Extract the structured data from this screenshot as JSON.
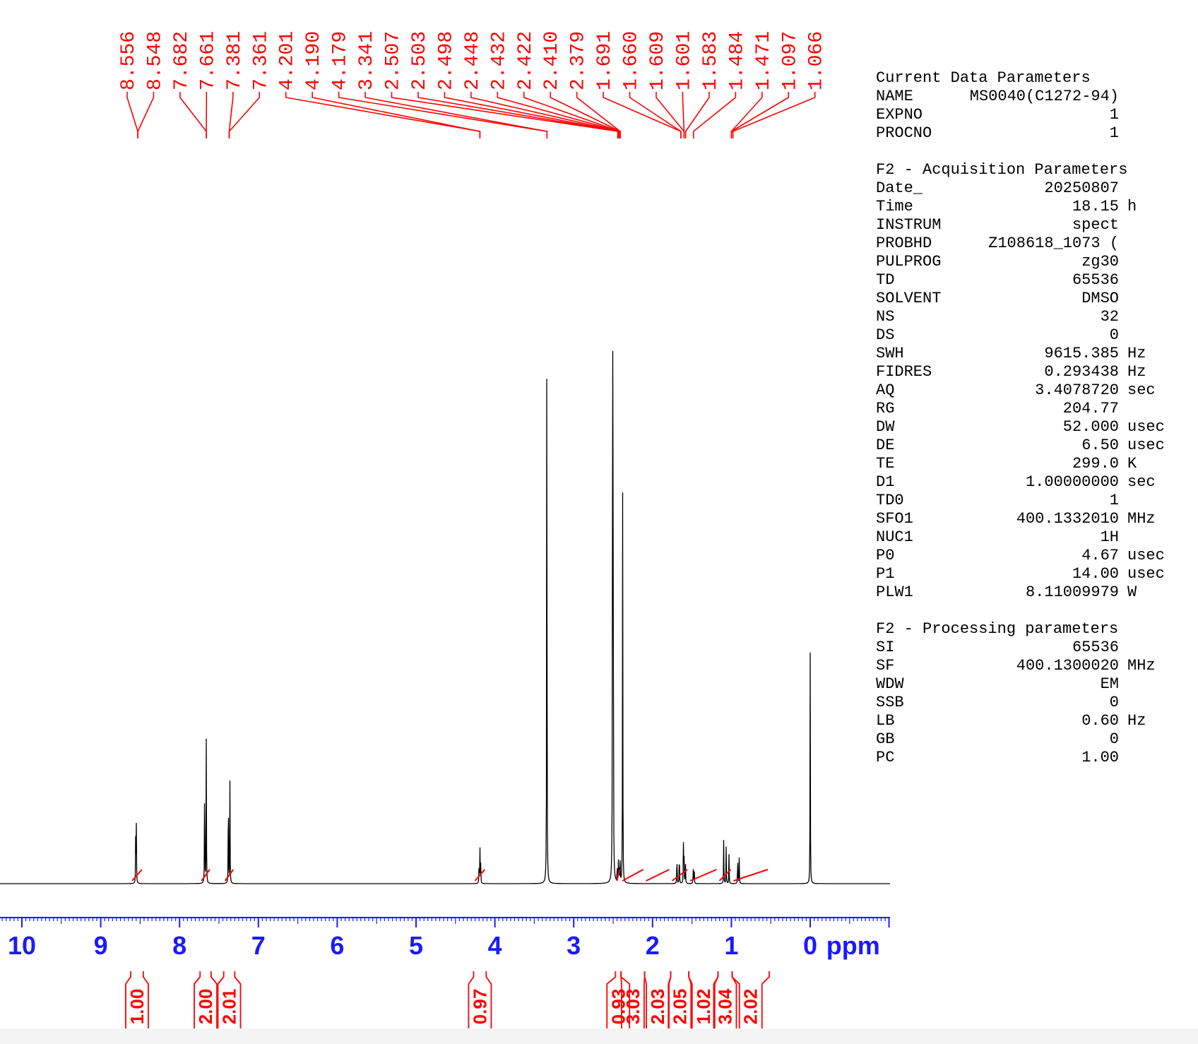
{
  "chart_data": {
    "type": "line",
    "xlabel": "ppm",
    "xlim": [
      10.2,
      -1.1
    ],
    "x_ticks": [
      "10",
      "9",
      "8",
      "7",
      "6",
      "5",
      "4",
      "3",
      "2",
      "1",
      "0"
    ],
    "grid": false,
    "colors": {
      "spectrum": "#000000",
      "annotation": "#ff0000",
      "axis": "#1a1aff"
    },
    "series": [
      {
        "peaks": [
          {
            "ppm": 8.556,
            "height": 0.09
          },
          {
            "ppm": 8.548,
            "height": 0.085
          },
          {
            "ppm": 7.682,
            "height": 0.185
          },
          {
            "ppm": 7.661,
            "height": 0.215
          },
          {
            "ppm": 7.381,
            "height": 0.17
          },
          {
            "ppm": 7.361,
            "height": 0.15
          },
          {
            "ppm": 4.201,
            "height": 0.03
          },
          {
            "ppm": 4.19,
            "height": 0.06
          },
          {
            "ppm": 4.179,
            "height": 0.035
          },
          {
            "ppm": 3.341,
            "height": 1.0
          },
          {
            "ppm": 2.507,
            "height": 0.75
          },
          {
            "ppm": 2.503,
            "height": 0.6
          },
          {
            "ppm": 2.498,
            "height": 0.45
          },
          {
            "ppm": 2.448,
            "height": 0.03
          },
          {
            "ppm": 2.432,
            "height": 0.035
          },
          {
            "ppm": 2.422,
            "height": 0.03
          },
          {
            "ppm": 2.41,
            "height": 0.03
          },
          {
            "ppm": 2.379,
            "height": 0.575
          },
          {
            "ppm": 1.691,
            "height": 0.05
          },
          {
            "ppm": 1.66,
            "height": 0.055
          },
          {
            "ppm": 1.609,
            "height": 0.06
          },
          {
            "ppm": 1.601,
            "height": 0.055
          },
          {
            "ppm": 1.583,
            "height": 0.04
          },
          {
            "ppm": 1.484,
            "height": 0.025
          },
          {
            "ppm": 1.471,
            "height": 0.025
          },
          {
            "ppm": 1.097,
            "height": 0.07
          },
          {
            "ppm": 1.066,
            "height": 0.055
          },
          {
            "ppm": 1.03,
            "height": 0.045
          },
          {
            "ppm": 0.92,
            "height": 0.045
          },
          {
            "ppm": 0.9,
            "height": 0.04
          },
          {
            "ppm": 0.0,
            "height": 0.34
          }
        ]
      }
    ],
    "peak_labels": [
      "8.556",
      "8.548",
      "7.682",
      "7.661",
      "7.381",
      "7.361",
      "4.201",
      "4.190",
      "4.179",
      "3.341",
      "2.507",
      "2.503",
      "2.498",
      "2.448",
      "2.432",
      "2.422",
      "2.410",
      "2.379",
      "1.691",
      "1.660",
      "1.609",
      "1.601",
      "1.583",
      "1.484",
      "1.471",
      "1.097",
      "1.066"
    ],
    "peak_label_targets": [
      8.53,
      8.53,
      7.66,
      7.66,
      7.37,
      7.37,
      4.19,
      4.19,
      3.34,
      3.34,
      2.44,
      2.44,
      2.44,
      2.43,
      2.42,
      2.42,
      2.41,
      2.41,
      1.64,
      1.64,
      1.6,
      1.6,
      1.58,
      1.48,
      1.0,
      1.0,
      0.98
    ],
    "integrals": [
      {
        "value": "1.00",
        "from": 8.62,
        "to": 8.46
      },
      {
        "value": "2.00",
        "from": 7.74,
        "to": 7.6
      },
      {
        "value": "2.01",
        "from": 7.44,
        "to": 7.3
      },
      {
        "value": "0.97",
        "from": 4.27,
        "to": 4.11
      },
      {
        "value": "0.93",
        "from": 2.47,
        "to": 2.4
      },
      {
        "value": "3.03",
        "from": 2.4,
        "to": 2.1
      },
      {
        "value": "2.03",
        "from": 2.1,
        "to": 1.77
      },
      {
        "value": "2.05",
        "from": 1.77,
        "to": 1.54
      },
      {
        "value": "1.02",
        "from": 1.54,
        "to": 1.17
      },
      {
        "value": "3.04",
        "from": 1.17,
        "to": 0.99
      },
      {
        "value": "2.02",
        "from": 0.99,
        "to": 0.52
      }
    ]
  },
  "parameters": {
    "current": {
      "title": "Current Data Parameters",
      "rows": [
        {
          "name": "NAME",
          "value": "MS0040(C1272-94)",
          "unit": ""
        },
        {
          "name": "EXPNO",
          "value": "1",
          "unit": ""
        },
        {
          "name": "PROCNO",
          "value": "1",
          "unit": ""
        }
      ]
    },
    "acquisition": {
      "title": "F2 - Acquisition Parameters",
      "rows": [
        {
          "name": "Date_",
          "value": "20250807",
          "unit": ""
        },
        {
          "name": "Time",
          "value": "18.15",
          "unit": "h"
        },
        {
          "name": "INSTRUM",
          "value": "spect",
          "unit": ""
        },
        {
          "name": "PROBHD",
          "value": "Z108618_1073 (",
          "unit": ""
        },
        {
          "name": "PULPROG",
          "value": "zg30",
          "unit": ""
        },
        {
          "name": "TD",
          "value": "65536",
          "unit": ""
        },
        {
          "name": "SOLVENT",
          "value": "DMSO",
          "unit": ""
        },
        {
          "name": "NS",
          "value": "32",
          "unit": ""
        },
        {
          "name": "DS",
          "value": "0",
          "unit": ""
        },
        {
          "name": "SWH",
          "value": "9615.385",
          "unit": "Hz"
        },
        {
          "name": "FIDRES",
          "value": "0.293438",
          "unit": "Hz"
        },
        {
          "name": "AQ",
          "value": "3.4078720",
          "unit": "sec"
        },
        {
          "name": "RG",
          "value": "204.77",
          "unit": ""
        },
        {
          "name": "DW",
          "value": "52.000",
          "unit": "usec"
        },
        {
          "name": "DE",
          "value": "6.50",
          "unit": "usec"
        },
        {
          "name": "TE",
          "value": "299.0",
          "unit": "K"
        },
        {
          "name": "D1",
          "value": "1.00000000",
          "unit": "sec"
        },
        {
          "name": "TD0",
          "value": "1",
          "unit": ""
        },
        {
          "name": "SFO1",
          "value": "400.1332010",
          "unit": "MHz"
        },
        {
          "name": "NUC1",
          "value": "1H",
          "unit": ""
        },
        {
          "name": "P0",
          "value": "4.67",
          "unit": "usec"
        },
        {
          "name": "P1",
          "value": "14.00",
          "unit": "usec"
        },
        {
          "name": "PLW1",
          "value": "8.11009979",
          "unit": "W"
        }
      ]
    },
    "processing": {
      "title": "F2 - Processing parameters",
      "rows": [
        {
          "name": "SI",
          "value": "65536",
          "unit": ""
        },
        {
          "name": "SF",
          "value": "400.1300020",
          "unit": "MHz"
        },
        {
          "name": "WDW",
          "value": "EM",
          "unit": ""
        },
        {
          "name": "SSB",
          "value": "0",
          "unit": ""
        },
        {
          "name": "LB",
          "value": "0.60",
          "unit": "Hz"
        },
        {
          "name": "GB",
          "value": "0",
          "unit": ""
        },
        {
          "name": "PC",
          "value": "1.00",
          "unit": ""
        }
      ]
    }
  }
}
